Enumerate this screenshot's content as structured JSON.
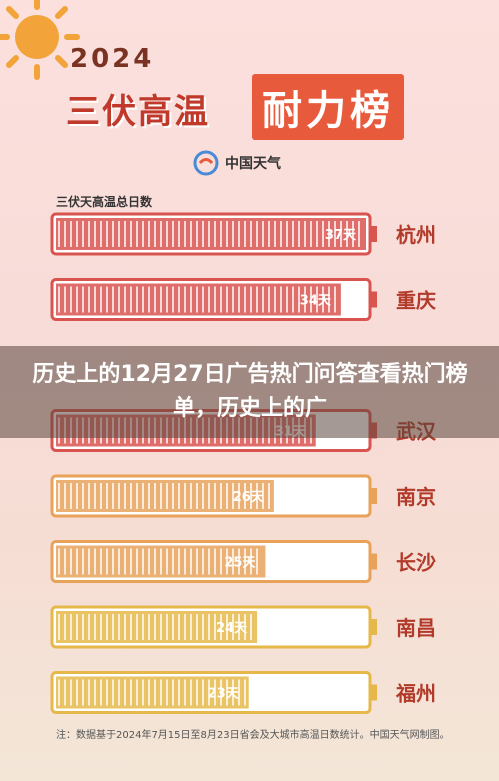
{
  "header": {
    "year": "2024",
    "title_part1": "三伏高温",
    "title_part2": "耐力榜",
    "brand": "中国天气"
  },
  "overlay": {
    "headline": "历史上的12月27日广告热门问答查看热门榜单，历史上的广"
  },
  "footer": {
    "source": "注：数据基于2024年7月15日至8月23日省会及大城市高温日数统计。中国天气网制图。"
  },
  "colors": {
    "title_red": "#c0392b",
    "highlight": "#e85a3c",
    "bar_red": "#d9534f",
    "bar_orange": "#e8a25a",
    "bar_yellow": "#e6b84a"
  },
  "chart_data": {
    "type": "bar",
    "orientation": "horizontal",
    "title": "三伏天高温总日数",
    "categories": [
      "杭州",
      "重庆",
      "",
      "武汉",
      "南京",
      "长沙",
      "南昌",
      "福州"
    ],
    "values": [
      37,
      34,
      null,
      31,
      26,
      25,
      24,
      23
    ],
    "labels": [
      "37天",
      "34天",
      "",
      "31天",
      "26天",
      "25天",
      "24天",
      "23天"
    ],
    "max": 37,
    "xlim": [
      0,
      37
    ]
  }
}
